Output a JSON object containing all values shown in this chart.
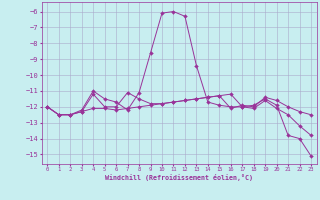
{
  "background_color": "#c8eef0",
  "grid_color": "#aaaacc",
  "line_color": "#993399",
  "xlabel": "Windchill (Refroidissement éolien,°C)",
  "x_min": -0.5,
  "x_max": 23.5,
  "y_min": -15.6,
  "y_max": -5.4,
  "yticks": [
    -6,
    -7,
    -8,
    -9,
    -10,
    -11,
    -12,
    -13,
    -14,
    -15
  ],
  "xticks": [
    0,
    1,
    2,
    3,
    4,
    5,
    6,
    7,
    8,
    9,
    10,
    11,
    12,
    13,
    14,
    15,
    16,
    17,
    18,
    19,
    20,
    21,
    22,
    23
  ],
  "series": [
    {
      "x": [
        0,
        1,
        2,
        3,
        4,
        5,
        6,
        7,
        8,
        9,
        10,
        11,
        12,
        13,
        14,
        15,
        16,
        17,
        18,
        19,
        20,
        21,
        22,
        23
      ],
      "y": [
        -12.0,
        -12.5,
        -12.5,
        -12.2,
        -11.0,
        -11.5,
        -11.7,
        -12.2,
        -11.1,
        -8.6,
        -6.1,
        -6.0,
        -6.3,
        -9.4,
        -11.7,
        -11.9,
        -12.0,
        -12.0,
        -11.9,
        -11.5,
        -11.9,
        -13.8,
        -14.0,
        -15.1
      ]
    },
    {
      "x": [
        0,
        1,
        2,
        3,
        4,
        5,
        6,
        7,
        8,
        9,
        10,
        11,
        12,
        13,
        14,
        15,
        16,
        17,
        18,
        19,
        20,
        21,
        22,
        23
      ],
      "y": [
        -12.0,
        -12.5,
        -12.5,
        -12.3,
        -11.2,
        -12.0,
        -12.0,
        -11.1,
        -11.5,
        -11.8,
        -11.8,
        -11.7,
        -11.6,
        -11.5,
        -11.4,
        -11.3,
        -12.1,
        -11.9,
        -12.0,
        -11.4,
        -11.6,
        -12.0,
        -12.3,
        -12.5
      ]
    },
    {
      "x": [
        0,
        1,
        2,
        3,
        4,
        5,
        6,
        7,
        8,
        9,
        10,
        11,
        12,
        13,
        14,
        15,
        16,
        17,
        18,
        19,
        20,
        21,
        22,
        23
      ],
      "y": [
        -12.0,
        -12.5,
        -12.5,
        -12.3,
        -12.1,
        -12.1,
        -12.2,
        -12.1,
        -12.0,
        -11.9,
        -11.8,
        -11.7,
        -11.6,
        -11.5,
        -11.4,
        -11.3,
        -11.2,
        -12.0,
        -12.1,
        -11.6,
        -12.1,
        -12.5,
        -13.2,
        -13.8
      ]
    }
  ]
}
